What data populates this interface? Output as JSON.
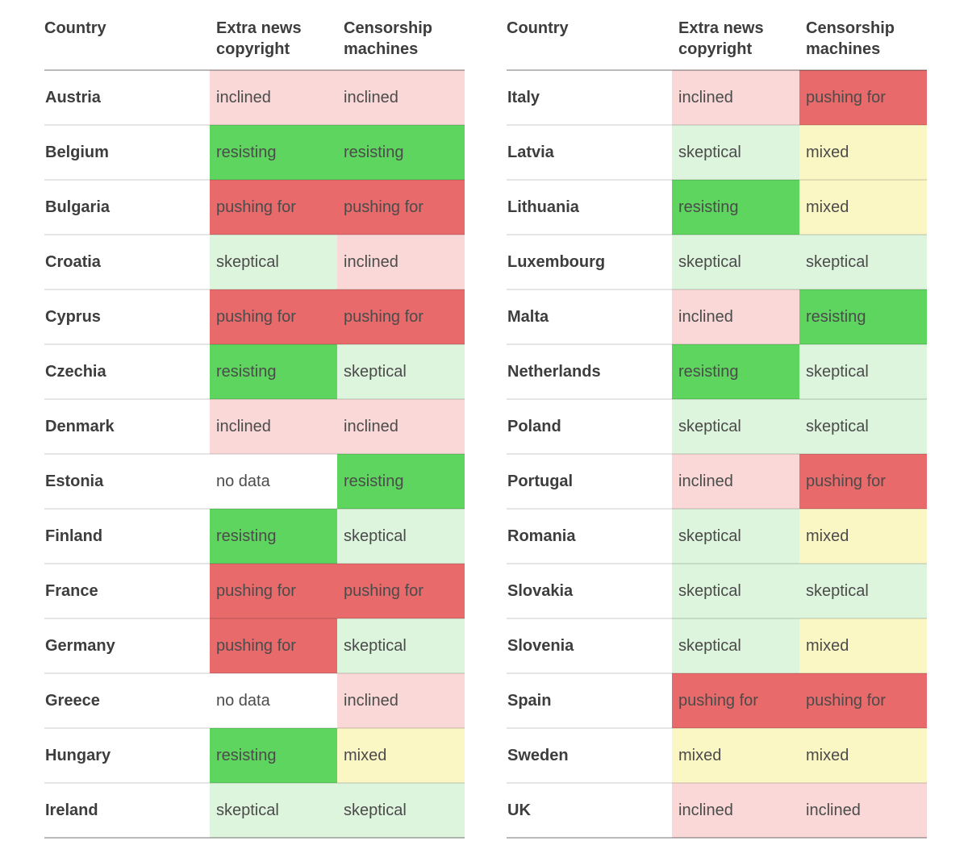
{
  "chart_data": {
    "type": "table",
    "columns": [
      "Country",
      "Extra news copyright",
      "Censorship machines"
    ],
    "status_levels": [
      "pushing for",
      "inclined",
      "mixed",
      "skeptical",
      "resisting",
      "no data"
    ],
    "status_colors": {
      "pushing for": "#e86a6a",
      "inclined": "#fad8d8",
      "mixed": "#fbf7c4",
      "skeptical": "#ddf4dd",
      "resisting": "#5ed55e",
      "no data": "#ffffff"
    },
    "text_colors": {
      "header": "#3d3d3d",
      "country": "#3d3d3d",
      "status_value": "#4b4b4b"
    },
    "tables": [
      {
        "rows": [
          {
            "country": "Austria",
            "copyright": "inclined",
            "censorship": "inclined"
          },
          {
            "country": "Belgium",
            "copyright": "resisting",
            "censorship": "resisting"
          },
          {
            "country": "Bulgaria",
            "copyright": "pushing for",
            "censorship": "pushing for"
          },
          {
            "country": "Croatia",
            "copyright": "skeptical",
            "censorship": "inclined"
          },
          {
            "country": "Cyprus",
            "copyright": "pushing for",
            "censorship": "pushing for"
          },
          {
            "country": "Czechia",
            "copyright": "resisting",
            "censorship": "skeptical"
          },
          {
            "country": "Denmark",
            "copyright": "inclined",
            "censorship": "inclined"
          },
          {
            "country": "Estonia",
            "copyright": "no data",
            "censorship": "resisting"
          },
          {
            "country": "Finland",
            "copyright": "resisting",
            "censorship": "skeptical"
          },
          {
            "country": "France",
            "copyright": "pushing for",
            "censorship": "pushing for"
          },
          {
            "country": "Germany",
            "copyright": "pushing for",
            "censorship": "skeptical"
          },
          {
            "country": "Greece",
            "copyright": "no data",
            "censorship": "inclined"
          },
          {
            "country": "Hungary",
            "copyright": "resisting",
            "censorship": "mixed"
          },
          {
            "country": "Ireland",
            "copyright": "skeptical",
            "censorship": "skeptical"
          }
        ]
      },
      {
        "rows": [
          {
            "country": "Italy",
            "copyright": "inclined",
            "censorship": "pushing for"
          },
          {
            "country": "Latvia",
            "copyright": "skeptical",
            "censorship": "mixed"
          },
          {
            "country": "Lithuania",
            "copyright": "resisting",
            "censorship": "mixed"
          },
          {
            "country": "Luxembourg",
            "copyright": "skeptical",
            "censorship": "skeptical"
          },
          {
            "country": "Malta",
            "copyright": "inclined",
            "censorship": "resisting"
          },
          {
            "country": "Netherlands",
            "copyright": "resisting",
            "censorship": "skeptical"
          },
          {
            "country": "Poland",
            "copyright": "skeptical",
            "censorship": "skeptical"
          },
          {
            "country": "Portugal",
            "copyright": "inclined",
            "censorship": "pushing for"
          },
          {
            "country": "Romania",
            "copyright": "skeptical",
            "censorship": "mixed"
          },
          {
            "country": "Slovakia",
            "copyright": "skeptical",
            "censorship": "skeptical"
          },
          {
            "country": "Slovenia",
            "copyright": "skeptical",
            "censorship": "mixed"
          },
          {
            "country": "Spain",
            "copyright": "pushing for",
            "censorship": "pushing for"
          },
          {
            "country": "Sweden",
            "copyright": "mixed",
            "censorship": "mixed"
          },
          {
            "country": "UK",
            "copyright": "inclined",
            "censorship": "inclined"
          }
        ]
      }
    ]
  }
}
